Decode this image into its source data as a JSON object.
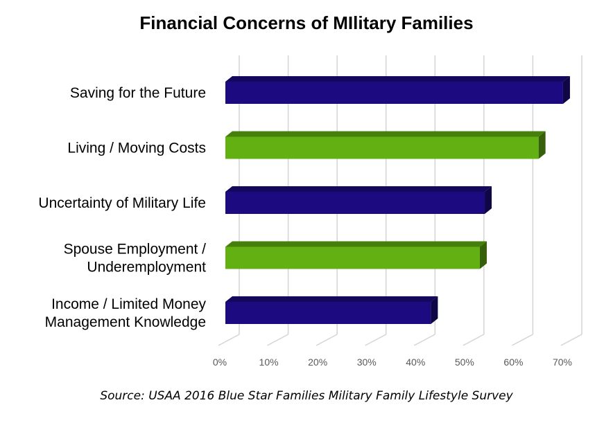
{
  "chart_data": {
    "type": "bar",
    "orientation": "horizontal",
    "style": "3d",
    "title": "Financial Concerns of MIlitary Families",
    "categories": [
      [
        "Saving for the Future"
      ],
      [
        "Living / Moving Costs"
      ],
      [
        "Uncertainty of Military Life"
      ],
      [
        "Spouse Employment /",
        "Underemployment"
      ],
      [
        "Income / Limited Money",
        "Management Knowledge"
      ]
    ],
    "values": [
      69,
      64,
      53,
      52,
      42
    ],
    "bar_colors": [
      "#1c0a80",
      "#62b012",
      "#1c0a80",
      "#62b012",
      "#1c0a80"
    ],
    "xlim": [
      0,
      70
    ],
    "xticks": [
      0,
      10,
      20,
      30,
      40,
      50,
      60,
      70
    ],
    "xtick_labels": [
      "0%",
      "10%",
      "20%",
      "30%",
      "40%",
      "50%",
      "60%",
      "70%"
    ],
    "xlabel": "",
    "ylabel": "",
    "grid": true,
    "legend": "none"
  },
  "source": "Source: USAA 2016 Blue Star Families Military Family Lifestyle Survey"
}
